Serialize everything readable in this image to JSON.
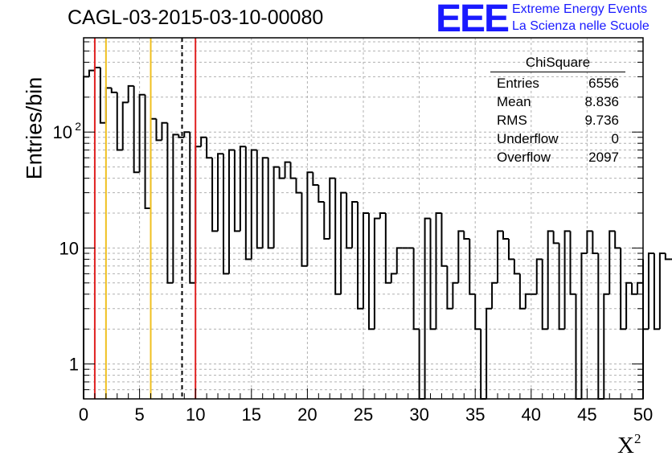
{
  "header": {
    "run_title": "CAGL-03-2015-03-10-00080",
    "logo_text": "EEE",
    "logo_line1": "Extreme Energy Events",
    "logo_line2": "La Scienza nelle Scuole",
    "logo_color": "#1a1aff"
  },
  "stats_box": {
    "title": "ChiSquare",
    "rows": [
      {
        "label": "Entries",
        "value": "6556"
      },
      {
        "label": "Mean",
        "value": "8.836"
      },
      {
        "label": "RMS",
        "value": "9.736"
      },
      {
        "label": "Underflow",
        "value": "0"
      },
      {
        "label": "Overflow",
        "value": "2097"
      }
    ]
  },
  "chart_data": {
    "type": "histogram",
    "title": "CAGL-03-2015-03-10-00080",
    "xlabel": "X",
    "xlabel_sup": "2",
    "ylabel": "Entries/bin",
    "xlim": [
      0,
      50
    ],
    "ylim": [
      0.5,
      650
    ],
    "yscale": "log",
    "grid": true,
    "bin_width": 0.5,
    "xticks": [
      0,
      5,
      10,
      15,
      20,
      25,
      30,
      35,
      40,
      45,
      50
    ],
    "xtick_labels": [
      "0",
      "5",
      "10",
      "15",
      "20",
      "25",
      "30",
      "35",
      "40",
      "45",
      "50"
    ],
    "ytick_labels": [
      {
        "value": 1,
        "label": "1"
      },
      {
        "value": 10,
        "label": "10"
      },
      {
        "value": 100,
        "label": "10",
        "sup": "2"
      }
    ],
    "counts": [
      300,
      340,
      360,
      120,
      240,
      220,
      70,
      180,
      250,
      45,
      210,
      22,
      130,
      85,
      120,
      5,
      95,
      90,
      100,
      5,
      75,
      90,
      60,
      14,
      65,
      6,
      70,
      14,
      75,
      8,
      70,
      10,
      60,
      10,
      50,
      40,
      55,
      40,
      30,
      7,
      45,
      35,
      25,
      12,
      40,
      4,
      30,
      10,
      25,
      3,
      20,
      2,
      18,
      20,
      5,
      6,
      10,
      10,
      10,
      2,
      0.4,
      18,
      2,
      20,
      7,
      3,
      5,
      14,
      12,
      4,
      2,
      0.4,
      3,
      5,
      14,
      12,
      8,
      6,
      3,
      4,
      4,
      8,
      2,
      14,
      11,
      2,
      14,
      4,
      0.4,
      9,
      14,
      9,
      0.4,
      4,
      14,
      10,
      2,
      5,
      4,
      5,
      2,
      9,
      2,
      9,
      8,
      8,
      4,
      2,
      4,
      8,
      8,
      6,
      7,
      4,
      6,
      2,
      3,
      5,
      4,
      8
    ],
    "vertical_lines": [
      {
        "x": 1,
        "color": "#e02020",
        "style": "solid"
      },
      {
        "x": 2,
        "color": "#f0c020",
        "style": "solid"
      },
      {
        "x": 6,
        "color": "#f0c020",
        "style": "solid"
      },
      {
        "x": 8.8,
        "color": "#000000",
        "style": "dashed"
      },
      {
        "x": 10,
        "color": "#e02020",
        "style": "solid"
      }
    ]
  }
}
